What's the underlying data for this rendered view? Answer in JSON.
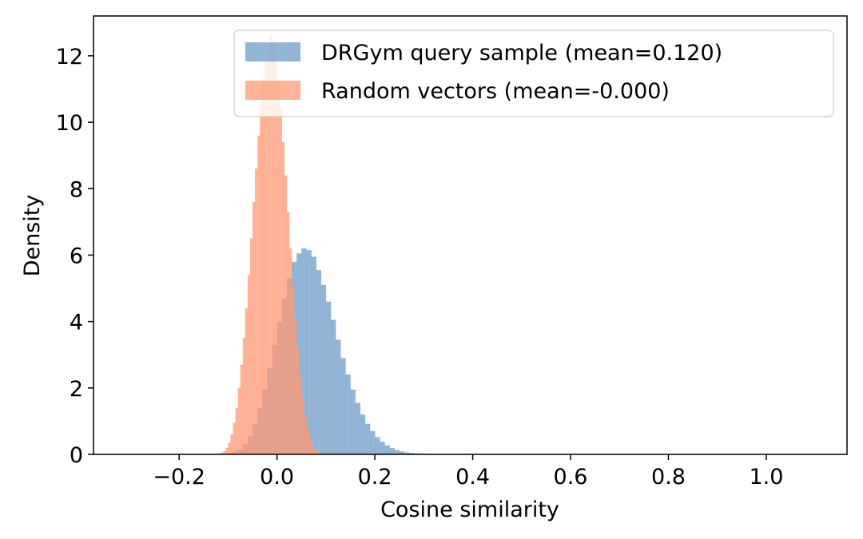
{
  "chart_data": {
    "type": "histogram",
    "title": "",
    "xlabel": "Cosine similarity",
    "ylabel": "Density",
    "xlim": [
      -0.375,
      1.165
    ],
    "ylim": [
      0,
      13.2
    ],
    "xticks": [
      -0.2,
      0.0,
      0.2,
      0.4,
      0.6,
      0.8,
      1.0
    ],
    "xtick_labels": [
      "−0.2",
      "0.0",
      "0.2",
      "0.4",
      "0.6",
      "0.8",
      "1.0"
    ],
    "yticks": [
      0,
      2,
      4,
      6,
      8,
      10,
      12
    ],
    "ytick_labels": [
      "0",
      "2",
      "4",
      "6",
      "8",
      "10",
      "12"
    ],
    "legend_position": "top-right",
    "series": [
      {
        "name": "DRGym query sample (mean=0.120)",
        "color": "#6f9bc7",
        "opacity": 0.75,
        "bin_edges_start": -0.12,
        "bin_width": 0.01,
        "values": [
          0.01,
          0.02,
          0.04,
          0.08,
          0.15,
          0.3,
          0.55,
          0.9,
          1.4,
          1.95,
          2.6,
          3.3,
          4.0,
          4.7,
          5.3,
          5.8,
          6.05,
          6.2,
          6.15,
          5.95,
          5.55,
          5.1,
          4.6,
          4.05,
          3.45,
          2.9,
          2.4,
          1.95,
          1.55,
          1.2,
          0.92,
          0.7,
          0.52,
          0.38,
          0.27,
          0.19,
          0.13,
          0.09,
          0.06,
          0.04,
          0.03,
          0.02,
          0.015,
          0.01,
          0.005,
          0.005,
          0.003,
          0.002,
          0.002,
          0.001,
          0.001,
          0.001,
          0.001,
          0.001
        ]
      },
      {
        "name": "Random vectors (mean=-0.000)",
        "color": "#ff9a76",
        "opacity": 0.75,
        "bin_edges_start": -0.12,
        "bin_width": 0.005,
        "values": [
          0.02,
          0.05,
          0.1,
          0.2,
          0.35,
          0.6,
          0.95,
          1.4,
          2.0,
          2.7,
          3.5,
          4.4,
          5.4,
          6.5,
          7.6,
          8.6,
          9.6,
          10.5,
          11.3,
          11.9,
          12.3,
          12.65,
          12.4,
          11.9,
          11.2,
          10.4,
          9.4,
          8.4,
          7.3,
          6.2,
          5.1,
          4.1,
          3.2,
          2.4,
          1.75,
          1.2,
          0.8,
          0.5,
          0.3,
          0.17,
          0.09,
          0.05,
          0.02
        ]
      }
    ]
  }
}
